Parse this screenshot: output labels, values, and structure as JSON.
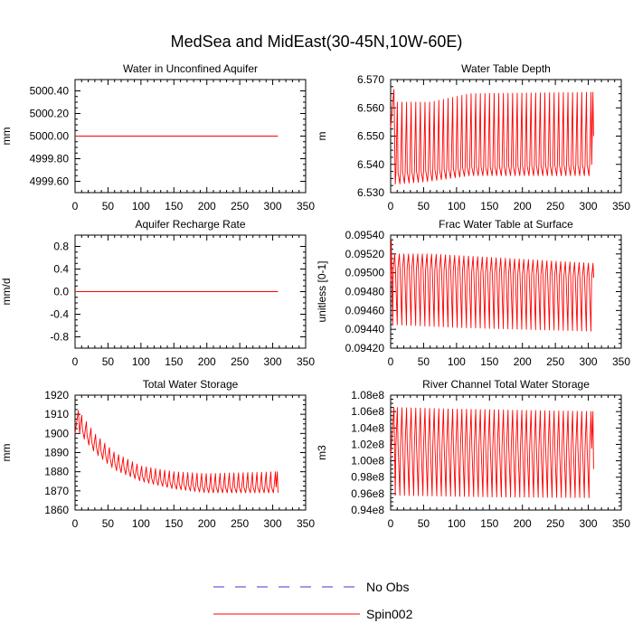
{
  "figure": {
    "title": "MedSea and MidEast(30-45N,10W-60E)",
    "colors": {
      "axis": "#000000",
      "obs": "#3a3ad0",
      "spin": "#ff0000"
    }
  },
  "legend": {
    "items": [
      {
        "label": "No Obs",
        "style": "dashed",
        "color": "#3a3ad0"
      },
      {
        "label": "Spin002",
        "style": "solid",
        "color": "#ff0000"
      }
    ]
  },
  "chart_data": [
    {
      "type": "line",
      "title": "Water in Unconfined Aquifer",
      "ylabel": "mm",
      "xlabel": "",
      "xlim": [
        0,
        350
      ],
      "xticks": [
        0,
        50,
        100,
        150,
        200,
        250,
        300,
        350
      ],
      "ylim": [
        4999.5,
        5000.5
      ],
      "yticks": [
        4999.6,
        4999.8,
        5000.0,
        5000.2,
        5000.4
      ],
      "yticklabels": [
        "4999.60",
        "4999.80",
        "5000.00",
        "5000.20",
        "5000.40"
      ],
      "series": [
        {
          "name": "Spin002",
          "x_range": [
            0,
            308
          ],
          "pattern": "constant",
          "value": 5000.0
        }
      ]
    },
    {
      "type": "line",
      "title": "Water Table Depth",
      "ylabel": "m",
      "xlabel": "",
      "xlim": [
        0,
        350
      ],
      "xticks": [
        0,
        50,
        100,
        150,
        200,
        250,
        300,
        350
      ],
      "ylim": [
        6.53,
        6.57
      ],
      "yticks": [
        6.53,
        6.54,
        6.55,
        6.56,
        6.57
      ],
      "yticklabels": [
        "6.530",
        "6.540",
        "6.550",
        "6.560",
        "6.570"
      ],
      "series": [
        {
          "name": "Spin002",
          "x_range": [
            0,
            308
          ],
          "pattern": "oscillating",
          "period": 7,
          "start_value": 6.553,
          "end_value": 6.55,
          "peak_value": 6.5665,
          "peak_at": 5,
          "upper": [
            [
              8,
              6.562
            ],
            [
              60,
              6.562
            ],
            [
              120,
              6.565
            ],
            [
              308,
              6.5655
            ]
          ],
          "lower": [
            [
              8,
              6.533
            ],
            [
              60,
              6.534
            ],
            [
              120,
              6.536
            ],
            [
              308,
              6.536
            ]
          ],
          "inner": [
            [
              8,
              6.537
            ],
            [
              120,
              6.539
            ],
            [
              308,
              6.54
            ]
          ]
        }
      ]
    },
    {
      "type": "line",
      "title": "Aquifer Recharge Rate",
      "ylabel": "mm/d",
      "xlabel": "",
      "xlim": [
        0,
        350
      ],
      "xticks": [
        0,
        50,
        100,
        150,
        200,
        250,
        300,
        350
      ],
      "ylim": [
        -1.0,
        1.0
      ],
      "yticks": [
        -0.8,
        -0.4,
        0.0,
        0.4,
        0.8
      ],
      "yticklabels": [
        "-0.8",
        "-0.4",
        "0.0",
        "0.4",
        "0.8"
      ],
      "series": [
        {
          "name": "Spin002",
          "x_range": [
            0,
            308
          ],
          "pattern": "constant",
          "value": 0.0
        }
      ]
    },
    {
      "type": "line",
      "title": "Frac Water Table at Surface",
      "ylabel": "unitless [0-1]",
      "xlabel": "",
      "xlim": [
        0,
        350
      ],
      "xticks": [
        0,
        50,
        100,
        150,
        200,
        250,
        300,
        350
      ],
      "ylim": [
        0.0942,
        0.0954
      ],
      "yticks": [
        0.0942,
        0.0944,
        0.0946,
        0.0948,
        0.095,
        0.0952,
        0.0954
      ],
      "yticklabels": [
        "0.09420",
        "0.09440",
        "0.09460",
        "0.09480",
        "0.09500",
        "0.09520",
        "0.09540"
      ],
      "series": [
        {
          "name": "Spin002",
          "x_range": [
            0,
            308
          ],
          "pattern": "oscillating",
          "period": 7,
          "start_value": 0.0949,
          "end_value": 0.09495,
          "peak_value": 0.09535,
          "peak_at": 1,
          "upper": [
            [
              6,
              0.0952
            ],
            [
              60,
              0.0952
            ],
            [
              308,
              0.0951
            ]
          ],
          "lower": [
            [
              6,
              0.09445
            ],
            [
              100,
              0.09442
            ],
            [
              308,
              0.09438
            ]
          ],
          "inner": [
            [
              6,
              0.09505
            ],
            [
              308,
              0.09495
            ]
          ]
        }
      ]
    },
    {
      "type": "line",
      "title": "Total Water Storage",
      "ylabel": "mm",
      "xlabel": "",
      "xlim": [
        0,
        350
      ],
      "xticks": [
        0,
        50,
        100,
        150,
        200,
        250,
        300,
        350
      ],
      "ylim": [
        1860,
        1920
      ],
      "yticks": [
        1860,
        1870,
        1880,
        1890,
        1900,
        1910,
        1920
      ],
      "yticklabels": [
        "1860",
        "1870",
        "1880",
        "1890",
        "1900",
        "1910",
        "1920"
      ],
      "series": [
        {
          "name": "Spin002",
          "x_range": [
            0,
            308
          ],
          "pattern": "oscillating",
          "period": 7,
          "start_value": 1900,
          "end_value": 1869,
          "peak_value": 1912,
          "peak_at": 5,
          "upper": [
            [
              5,
              1912
            ],
            [
              30,
              1900
            ],
            [
              60,
              1890
            ],
            [
              100,
              1883
            ],
            [
              150,
              1880
            ],
            [
              200,
              1879
            ],
            [
              308,
              1880
            ]
          ],
          "lower": [
            [
              5,
              1901
            ],
            [
              30,
              1890
            ],
            [
              60,
              1881
            ],
            [
              100,
              1875
            ],
            [
              150,
              1871
            ],
            [
              200,
              1869
            ],
            [
              308,
              1869
            ]
          ],
          "inner": [
            [
              5,
              1905
            ],
            [
              30,
              1894
            ],
            [
              60,
              1885
            ],
            [
              100,
              1878
            ],
            [
              150,
              1874
            ],
            [
              200,
              1872
            ],
            [
              308,
              1872
            ]
          ]
        }
      ]
    },
    {
      "type": "line",
      "title": "River Channel Total Water Storage",
      "ylabel": "m3",
      "xlabel": "",
      "xlim": [
        0,
        350
      ],
      "xticks": [
        0,
        50,
        100,
        150,
        200,
        250,
        300,
        350
      ],
      "ylim": [
        94000000,
        108000000
      ],
      "yticks": [
        94000000,
        96000000,
        98000000,
        100000000,
        102000000,
        104000000,
        106000000,
        108000000
      ],
      "yticklabels": [
        "0.94e8",
        "0.96e8",
        "0.98e8",
        "1.00e8",
        "1.02e8",
        "1.04e8",
        "1.06e8",
        "1.08e8"
      ],
      "series": [
        {
          "name": "Spin002",
          "x_range": [
            0,
            308
          ],
          "pattern": "oscillating",
          "period": 7,
          "start_value": 100500000,
          "end_value": 99000000,
          "peak_value": 106500000,
          "peak_at": 5,
          "upper": [
            [
              5,
              106500000
            ],
            [
              100,
              106300000
            ],
            [
              308,
              106000000
            ]
          ],
          "lower": [
            [
              5,
              95800000
            ],
            [
              150,
              95600000
            ],
            [
              308,
              95500000
            ]
          ],
          "inner": [
            [
              5,
              102000000
            ],
            [
              308,
              101500000
            ]
          ]
        }
      ]
    }
  ]
}
